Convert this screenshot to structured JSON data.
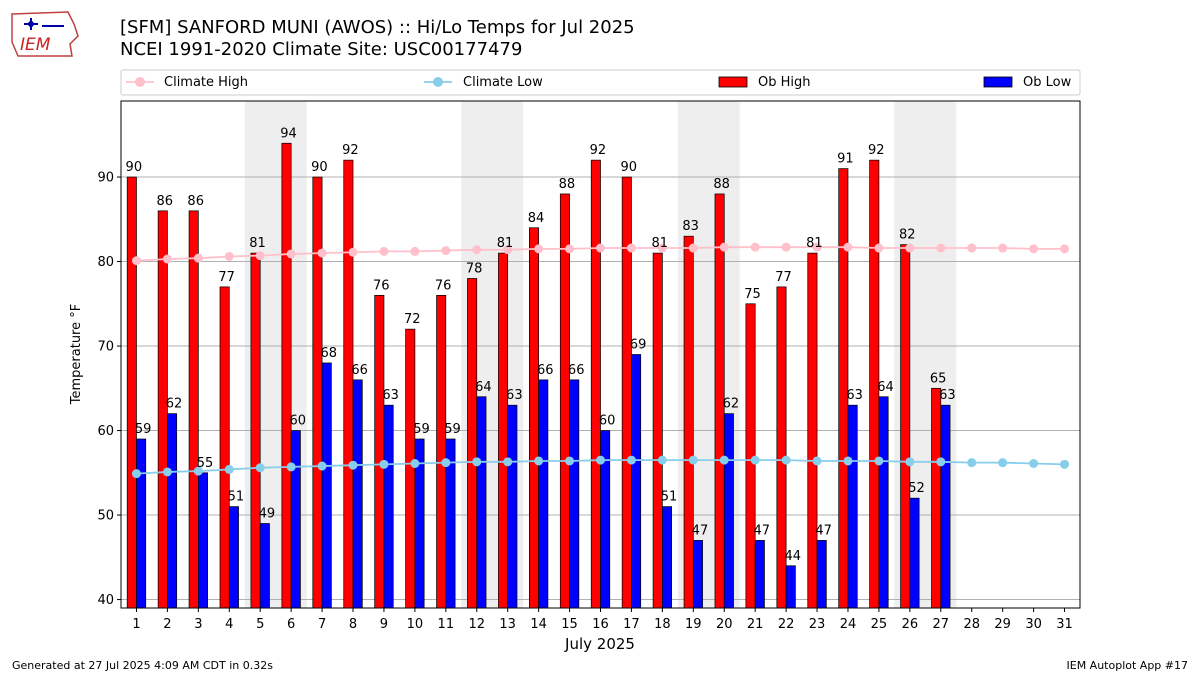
{
  "logo": {
    "text": "IEM"
  },
  "header": {
    "title_line1": "[SFM] SANFORD MUNI (AWOS) :: Hi/Lo Temps for Jul 2025",
    "title_line2": "NCEI 1991-2020 Climate Site: USC00177479"
  },
  "footer": {
    "left": "Generated at 27 Jul 2025 4:09 AM CDT in 0.32s",
    "right": "IEM Autoplot App #17"
  },
  "colors": {
    "ob_high": "#ff0000",
    "ob_low": "#0000ff",
    "climate_high": "#ffc0cb",
    "climate_low": "#87ceeb",
    "weekend_shade": "#eeeeee",
    "grid": "#b0b0b0"
  },
  "chart_data": {
    "type": "bar",
    "xlabel": "July 2025",
    "ylabel": "Temperature °F",
    "ylim": [
      39,
      99
    ],
    "yticks": [
      40,
      50,
      60,
      70,
      80,
      90
    ],
    "grid": "horizontal",
    "legend_position": "top",
    "shaded_weekends": [
      [
        5,
        6
      ],
      [
        12,
        13
      ],
      [
        19,
        20
      ],
      [
        26,
        27
      ]
    ],
    "x": [
      1,
      2,
      3,
      4,
      5,
      6,
      7,
      8,
      9,
      10,
      11,
      12,
      13,
      14,
      15,
      16,
      17,
      18,
      19,
      20,
      21,
      22,
      23,
      24,
      25,
      26,
      27,
      28,
      29,
      30,
      31
    ],
    "series": [
      {
        "name": "Ob High",
        "kind": "bar",
        "values": [
          90,
          86,
          86,
          77,
          81,
          94,
          90,
          92,
          76,
          72,
          76,
          78,
          81,
          84,
          88,
          92,
          90,
          81,
          83,
          88,
          75,
          77,
          81,
          91,
          92,
          82,
          65,
          null,
          null,
          null,
          null
        ]
      },
      {
        "name": "Ob Low",
        "kind": "bar",
        "values": [
          59,
          62,
          55,
          51,
          49,
          60,
          68,
          66,
          63,
          59,
          59,
          64,
          63,
          66,
          66,
          60,
          69,
          51,
          47,
          62,
          47,
          44,
          47,
          63,
          64,
          52,
          63,
          null,
          null,
          null,
          null
        ]
      },
      {
        "name": "Climate High",
        "kind": "line",
        "values": [
          80.1,
          80.3,
          80.4,
          80.6,
          80.7,
          80.9,
          81.0,
          81.1,
          81.2,
          81.2,
          81.3,
          81.4,
          81.4,
          81.5,
          81.5,
          81.6,
          81.6,
          81.6,
          81.6,
          81.7,
          81.7,
          81.7,
          81.7,
          81.7,
          81.6,
          81.6,
          81.6,
          81.6,
          81.6,
          81.5,
          81.5
        ]
      },
      {
        "name": "Climate Low",
        "kind": "line",
        "values": [
          54.9,
          55.1,
          55.2,
          55.4,
          55.6,
          55.7,
          55.8,
          55.9,
          56.0,
          56.1,
          56.2,
          56.3,
          56.3,
          56.4,
          56.4,
          56.5,
          56.5,
          56.5,
          56.5,
          56.5,
          56.5,
          56.5,
          56.4,
          56.4,
          56.4,
          56.3,
          56.3,
          56.2,
          56.2,
          56.1,
          56.0
        ]
      }
    ]
  }
}
